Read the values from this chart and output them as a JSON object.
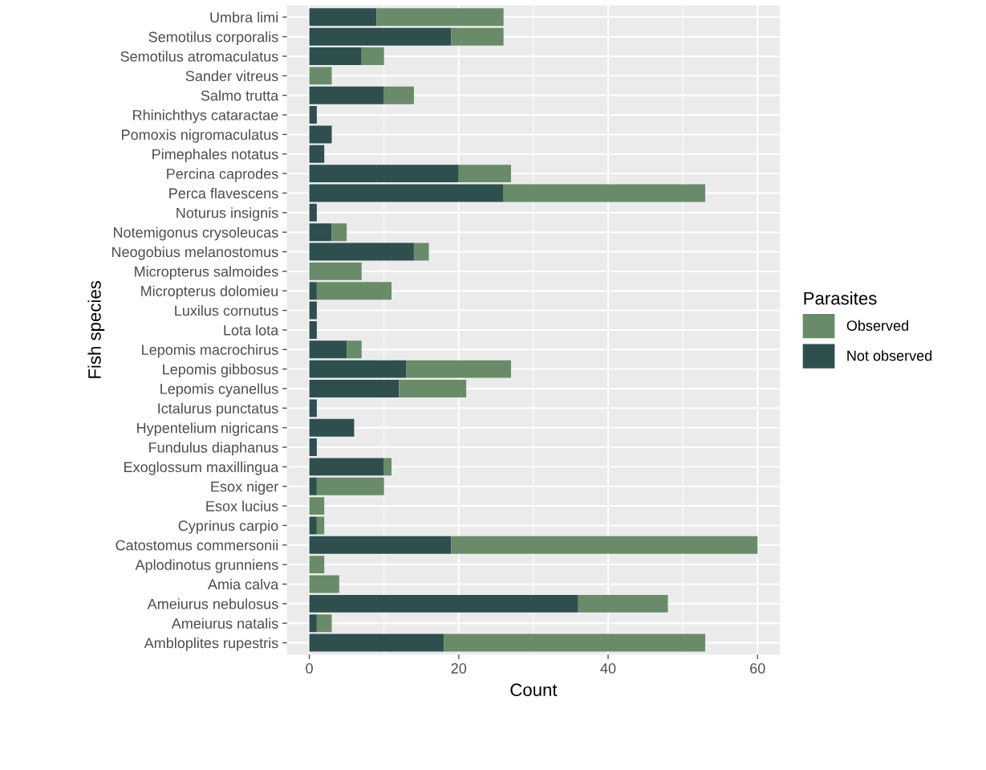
{
  "chart_data": {
    "type": "bar",
    "orientation": "horizontal",
    "stacked": true,
    "xlabel": "Count",
    "ylabel": "Fish species",
    "legend_title": "Parasites",
    "legend": "right",
    "grid": true,
    "categories": [
      "Umbra limi",
      "Semotilus corporalis",
      "Semotilus atromaculatus",
      "Sander vitreus",
      "Salmo trutta",
      "Rhinichthys cataractae",
      "Pomoxis nigromaculatus",
      "Pimephales notatus",
      "Percina caprodes",
      "Perca flavescens",
      "Noturus insignis",
      "Notemigonus crysoleucas",
      "Neogobius melanostomus",
      "Micropterus salmoides",
      "Micropterus dolomieu",
      "Luxilus cornutus",
      "Lota lota",
      "Lepomis macrochirus",
      "Lepomis gibbosus",
      "Lepomis cyanellus",
      "Ictalurus punctatus",
      "Hypentelium nigricans",
      "Fundulus diaphanus",
      "Exoglossum maxillingua",
      "Esox niger",
      "Esox lucius",
      "Cyprinus carpio",
      "Catostomus commersonii",
      "Aplodinotus grunniens",
      "Amia calva",
      "Ameiurus nebulosus",
      "Ameiurus natalis",
      "Ambloplites rupestris"
    ],
    "series": [
      {
        "name": "Not observed",
        "color": "#2f4f4f",
        "values": [
          9,
          19,
          7,
          0,
          10,
          1,
          3,
          2,
          20,
          26,
          1,
          3,
          14,
          0,
          1,
          1,
          1,
          5,
          13,
          12,
          1,
          6,
          1,
          10,
          1,
          0,
          1,
          19,
          0,
          0,
          36,
          1,
          18
        ]
      },
      {
        "name": "Observed",
        "color": "#698b69",
        "values": [
          17,
          7,
          3,
          3,
          4,
          0,
          0,
          0,
          7,
          27,
          0,
          2,
          2,
          7,
          10,
          0,
          0,
          2,
          14,
          9,
          0,
          0,
          0,
          1,
          9,
          2,
          1,
          41,
          2,
          4,
          12,
          2,
          35
        ]
      }
    ],
    "xlim": [
      -3,
      63
    ],
    "xticks": [
      0,
      {
        "value": 10,
        "label": null
      },
      20,
      {
        "value": 30,
        "label": null
      },
      40,
      {
        "value": 50,
        "label": null
      },
      60
    ]
  }
}
